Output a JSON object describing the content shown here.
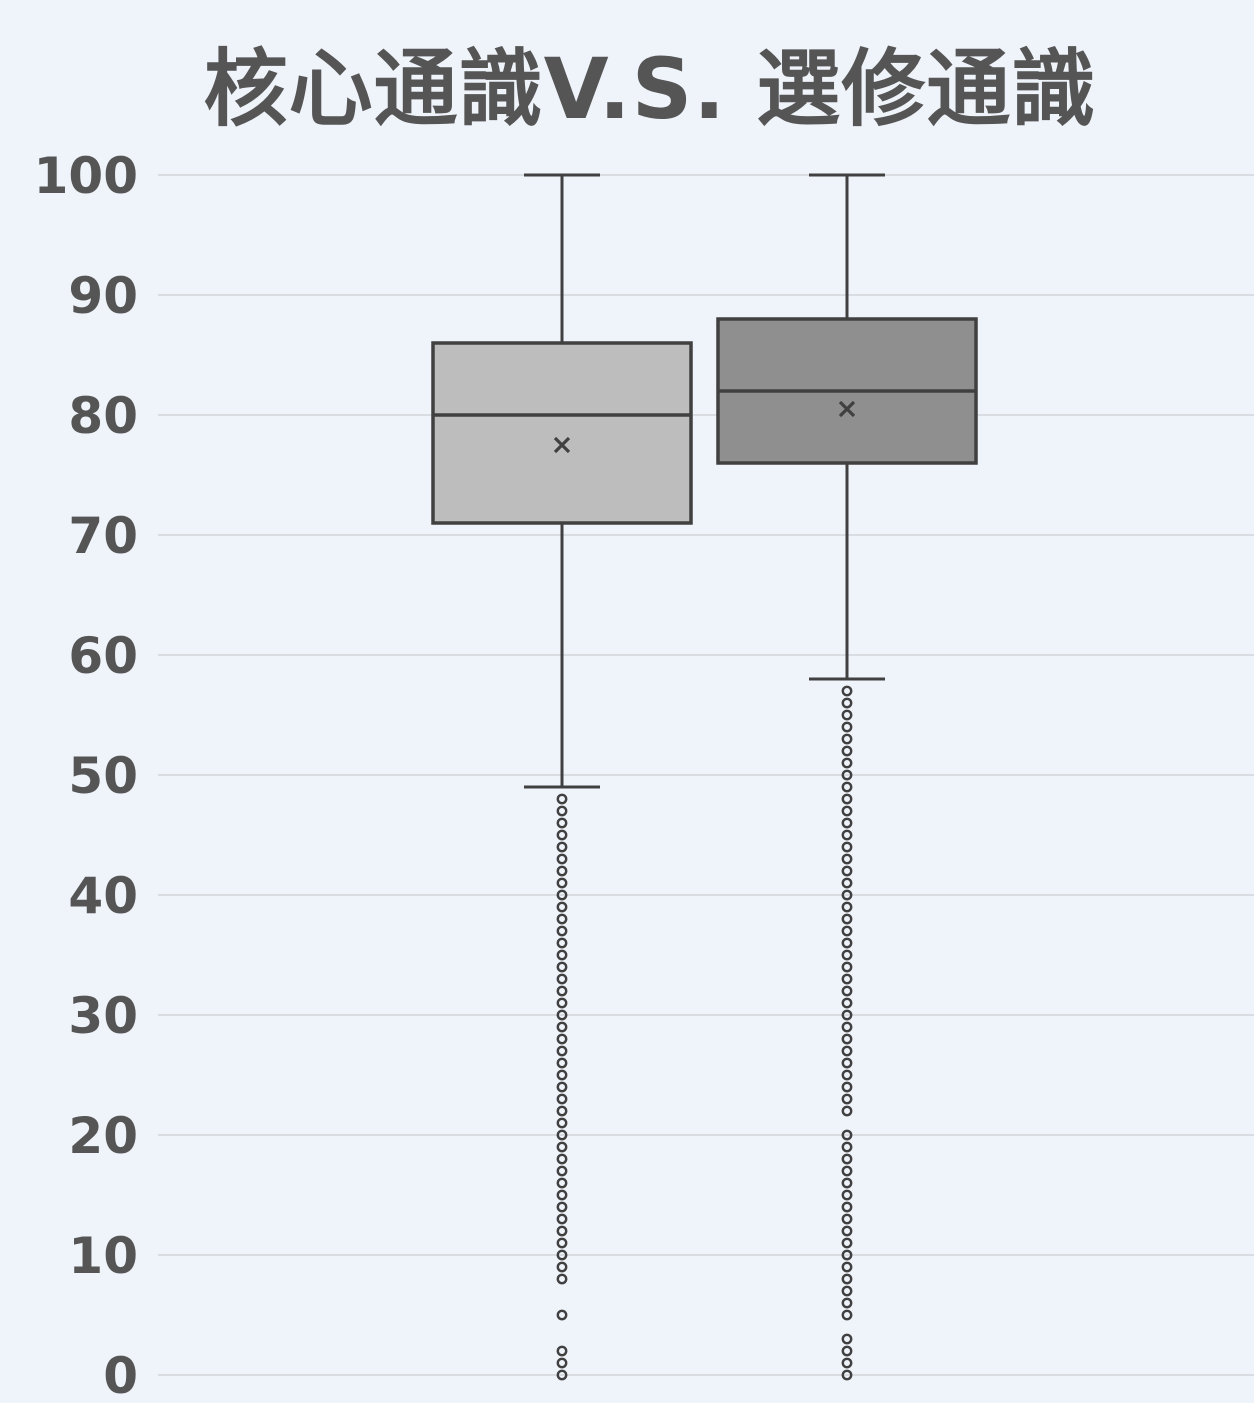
{
  "chart_data": {
    "type": "box",
    "title": "核心通識V.S. 選修通識",
    "xlabel": "",
    "ylabel": "",
    "ylim": [
      0,
      100
    ],
    "yticks": [
      0,
      10,
      20,
      30,
      40,
      50,
      60,
      70,
      80,
      90,
      100
    ],
    "grid": true,
    "legend": "none",
    "series": [
      {
        "whisker_low": 49,
        "q1": 71,
        "median": 80,
        "q3": 86,
        "whisker_high": 100,
        "mean": 77.5,
        "outliers": [
          0,
          1,
          2,
          5,
          8,
          9,
          10,
          11,
          12,
          13,
          14,
          15,
          16,
          17,
          18,
          19,
          20,
          21,
          22,
          23,
          24,
          25,
          26,
          27,
          28,
          29,
          30,
          31,
          32,
          33,
          34,
          35,
          36,
          37,
          38,
          39,
          40,
          41,
          42,
          43,
          44,
          45,
          46,
          47,
          48
        ],
        "color": "#bdbdbd"
      },
      {
        "whisker_low": 58,
        "q1": 76,
        "median": 82,
        "q3": 88,
        "whisker_high": 100,
        "mean": 80.5,
        "outliers": [
          0,
          1,
          2,
          3,
          5,
          6,
          7,
          8,
          9,
          10,
          11,
          12,
          13,
          14,
          15,
          16,
          17,
          18,
          19,
          20,
          22,
          23,
          24,
          25,
          26,
          27,
          28,
          29,
          30,
          31,
          32,
          33,
          34,
          35,
          36,
          37,
          38,
          39,
          40,
          41,
          42,
          43,
          44,
          45,
          46,
          47,
          48,
          49,
          50,
          51,
          52,
          53,
          54,
          55,
          56,
          57
        ],
        "color": "#8f8f8f"
      }
    ],
    "line_color": "#404040",
    "grid_color": "#d9dde2",
    "text_color": "#555555",
    "background": "#eff3fa"
  }
}
